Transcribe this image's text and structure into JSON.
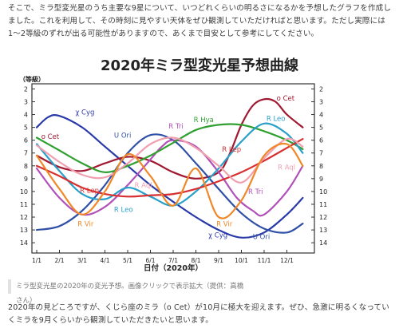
{
  "article": {
    "intro": "そこで、ミラ型変光星のうち主要な9星について、いつどれくらいの明るさになるかを予想したグラフを作成しました。これを利用して、その時刻に見やすい天体をぜひ観測していただければと思います。ただし実際には1〜2等級のずれが出る可能性がありますので、あくまで目安として参考にしてください。",
    "caption": "ミラ型変光星の2020年の変光予想。画像クリックで表示拡大（提供：高橋さん）",
    "outro": "2020年の見どころですが、くじら座のミラ（ο Cet）が10月に極大を迎えます。ぜひ、急激に明るくなっていくミラを9月くらいから観測していただきたいと思います。"
  },
  "chart_data": {
    "type": "line",
    "title": "2020年ミラ型変光星予想曲線",
    "xlabel": "日付（2020年）",
    "ylabel": "（等級）",
    "categories": [
      "1/1",
      "2/1",
      "3/1",
      "4/1",
      "5/1",
      "6/1",
      "7/1",
      "8/1",
      "9/1",
      "10/1",
      "11/1",
      "12/1"
    ],
    "x_range": [
      0,
      12
    ],
    "ylim": [
      14.8,
      1.6
    ],
    "y_inverted": true,
    "y_ticks": [
      2,
      3,
      4,
      5,
      6,
      7,
      8,
      9,
      10,
      11,
      12,
      13,
      14
    ],
    "grid": false,
    "series": [
      {
        "name": "χ Cyg",
        "color": "#2a3aa8",
        "x": [
          0,
          0.5,
          1,
          2,
          3,
          4,
          5,
          6,
          7,
          8,
          9,
          10,
          11,
          11.7
        ],
        "y": [
          5.0,
          4.2,
          4.1,
          5.0,
          6.5,
          8.0,
          9.5,
          10.8,
          12.0,
          13.0,
          13.6,
          13.2,
          11.8,
          10.5
        ]
      },
      {
        "name": "ο Cet",
        "color": "#a01830",
        "x": [
          0,
          1,
          2,
          3,
          4,
          5,
          6,
          7,
          8,
          8.5,
          9,
          9.5,
          10,
          10.5,
          11,
          11.7
        ],
        "y": [
          7.2,
          8.1,
          8.4,
          7.8,
          7.3,
          7.6,
          8.5,
          9.0,
          8.5,
          7.0,
          4.8,
          3.3,
          2.8,
          3.0,
          4.0,
          5.0
        ]
      },
      {
        "name": "U Ori",
        "color": "#3050a8",
        "x": [
          0,
          1,
          2,
          3,
          4,
          5,
          6,
          7,
          8,
          9,
          10,
          11,
          11.7
        ],
        "y": [
          13.0,
          12.7,
          11.5,
          9.5,
          7.0,
          5.6,
          6.0,
          7.8,
          9.8,
          11.7,
          12.9,
          13.2,
          12.5
        ]
      },
      {
        "name": "R Tri",
        "color": "#b050b8",
        "x": [
          0,
          1,
          2,
          3,
          4,
          5,
          5.5,
          6,
          7,
          8,
          8.8,
          9.5,
          10,
          11,
          11.7
        ],
        "y": [
          8.2,
          10.5,
          11.8,
          11.2,
          9.5,
          7.5,
          6.5,
          6.0,
          6.5,
          8.5,
          10.5,
          11.5,
          11.8,
          10.0,
          8.0
        ]
      },
      {
        "name": "R Hya",
        "color": "#30a030",
        "x": [
          0,
          1,
          2,
          3,
          4,
          5,
          6,
          7,
          8,
          9,
          10,
          11,
          11.7
        ],
        "y": [
          5.8,
          6.8,
          7.8,
          8.5,
          8.0,
          7.2,
          6.2,
          5.2,
          4.8,
          4.8,
          5.3,
          6.0,
          6.7
        ]
      },
      {
        "name": "R Leo",
        "color": "#2aa0c8",
        "x": [
          0,
          1,
          2,
          3,
          4,
          5,
          6,
          7,
          8,
          9,
          10,
          11,
          11.7
        ],
        "y": [
          6.3,
          8.4,
          10.2,
          10.6,
          9.7,
          10.4,
          11.1,
          10.0,
          8.2,
          6.1,
          4.7,
          5.5,
          7.0
        ]
      },
      {
        "name": "R Lep",
        "color": "#d83030",
        "x": [
          0,
          1,
          2,
          3,
          4,
          5,
          6,
          7,
          8,
          9,
          10,
          11,
          11.7
        ],
        "y": [
          8.0,
          8.8,
          9.7,
          10.2,
          10.4,
          10.3,
          10.2,
          9.8,
          9.2,
          8.5,
          7.6,
          6.6,
          5.9
        ]
      },
      {
        "name": "R Aql",
        "color": "#f0a0b0",
        "x": [
          0,
          1,
          2,
          3,
          4,
          5,
          6,
          7,
          8,
          9,
          10,
          11,
          11.7
        ],
        "y": [
          6.4,
          7.7,
          8.7,
          8.9,
          7.8,
          6.3,
          5.8,
          6.6,
          8.0,
          9.3,
          7.4,
          5.9,
          6.5
        ]
      },
      {
        "name": "R Vir",
        "color": "#f08828",
        "x": [
          0,
          1,
          2,
          3,
          4,
          5,
          6,
          7,
          8,
          9,
          10,
          11,
          11.7
        ],
        "y": [
          7.2,
          9.8,
          11.8,
          10.0,
          7.1,
          8.8,
          11.1,
          8.2,
          12.0,
          10.7,
          7.2,
          6.3,
          8.0
        ]
      }
    ],
    "labels": [
      {
        "text": "χ Cyg",
        "series": "χ Cyg",
        "x": 1.7,
        "y": 4.0
      },
      {
        "text": "χ Cyg",
        "series": "χ Cyg",
        "x": 7.55,
        "y": 13.6
      },
      {
        "text": "ο Cet",
        "series": "ο Cet",
        "x": 0.2,
        "y": 5.9
      },
      {
        "text": "ο Cet",
        "series": "ο Cet",
        "x": 10.55,
        "y": 2.9
      },
      {
        "text": "U Ori",
        "series": "U Ori",
        "x": 3.4,
        "y": 5.8
      },
      {
        "text": "U Ori",
        "series": "U Ori",
        "x": 9.5,
        "y": 13.7
      },
      {
        "text": "R Tri",
        "series": "R Tri",
        "x": 5.8,
        "y": 5.1
      },
      {
        "text": "R Tri",
        "series": "R Tri",
        "x": 9.3,
        "y": 10.2
      },
      {
        "text": "R Hya",
        "series": "R Hya",
        "x": 6.9,
        "y": 4.6
      },
      {
        "text": "R Leo",
        "series": "R Leo",
        "x": 10.1,
        "y": 4.5
      },
      {
        "text": "R Leo",
        "series": "R Leo",
        "x": 3.4,
        "y": 11.6
      },
      {
        "text": "R Lep",
        "series": "R Lep",
        "x": 1.9,
        "y": 10.1
      },
      {
        "text": "R Lep",
        "series": "R Lep",
        "x": 8.15,
        "y": 6.9
      },
      {
        "text": "R Aql",
        "series": "R Aql",
        "x": 4.3,
        "y": 9.7
      },
      {
        "text": "R Aql",
        "series": "R Aql",
        "x": 10.6,
        "y": 8.3
      },
      {
        "text": "R Vir",
        "series": "R Vir",
        "x": 1.8,
        "y": 12.7
      },
      {
        "text": "R Vir",
        "series": "R Vir",
        "x": 7.9,
        "y": 12.7
      }
    ]
  }
}
